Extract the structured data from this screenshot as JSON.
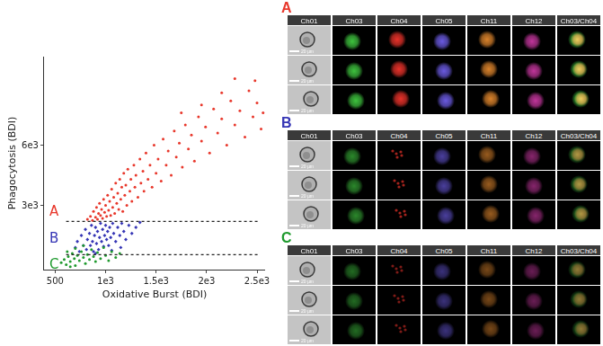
{
  "chart_data": {
    "type": "scatter",
    "xlabel": "Oxidative Burst (BDI)",
    "ylabel": "Phagocytosis (BDI)",
    "xlim": [
      390,
      2580
    ],
    "xticks": [
      500,
      {
        "value": 1000,
        "label": "1e3"
      },
      {
        "value": 1500,
        "label": "1.5e3"
      },
      {
        "value": 2000,
        "label": "2e3"
      },
      {
        "value": 2500,
        "label": "2.5e3"
      }
    ],
    "ylim": [
      -200,
      10400
    ],
    "yticks": [
      {
        "value": 3000,
        "label": "3e3"
      },
      {
        "value": 6000,
        "label": "6e3"
      }
    ],
    "grid": false,
    "gate_boundaries": [
      2200,
      540
    ],
    "series": [
      {
        "name": "A",
        "color": "#e8372b",
        "marker": "circle",
        "x": [
          820,
          850,
          870,
          880,
          900,
          910,
          920,
          930,
          940,
          950,
          960,
          970,
          980,
          990,
          1000,
          1010,
          1020,
          1030,
          1040,
          1050,
          1060,
          1070,
          1080,
          1090,
          1100,
          1110,
          1120,
          1130,
          1140,
          1150,
          1160,
          1170,
          1180,
          1190,
          1200,
          1210,
          1220,
          1240,
          1250,
          1260,
          1280,
          1290,
          1300,
          1320,
          1340,
          1350,
          1370,
          1380,
          1400,
          1420,
          1440,
          1460,
          1480,
          1500,
          1520,
          1550,
          1570,
          1600,
          1620,
          1650,
          1680,
          1700,
          1730,
          1760,
          1790,
          1820,
          1850,
          1880,
          1920,
          1950,
          1990,
          2030,
          2070,
          2110,
          2150,
          2200,
          2240,
          2280,
          2330,
          2380,
          2420,
          2460,
          2500,
          2540,
          2280,
          2480,
          2150,
          1950,
          2560,
          1750
        ],
        "y": [
          2300,
          2450,
          2250,
          2700,
          2400,
          2900,
          2300,
          2600,
          3100,
          2500,
          2800,
          2350,
          3300,
          2650,
          3000,
          2450,
          3500,
          2750,
          3200,
          2500,
          3800,
          2900,
          3400,
          2600,
          4100,
          3100,
          3600,
          2800,
          4300,
          3300,
          3900,
          2700,
          4600,
          3500,
          4000,
          3000,
          4800,
          3700,
          4300,
          3200,
          5000,
          3900,
          4500,
          3400,
          5300,
          4100,
          4700,
          3700,
          5600,
          4300,
          5000,
          3900,
          6000,
          4600,
          5300,
          4200,
          6300,
          5000,
          5700,
          4500,
          6700,
          5400,
          6100,
          4900,
          7000,
          5800,
          6500,
          5200,
          7400,
          6200,
          6900,
          5600,
          7800,
          6600,
          7300,
          6000,
          8200,
          7000,
          7700,
          6400,
          8700,
          7400,
          8100,
          6800,
          9300,
          9200,
          8600,
          8000,
          7600,
          7600
        ]
      },
      {
        "name": "B",
        "color": "#3535b5",
        "marker": "diamond",
        "x": [
          700,
          720,
          740,
          760,
          780,
          800,
          810,
          820,
          840,
          850,
          860,
          870,
          880,
          890,
          900,
          910,
          920,
          930,
          940,
          950,
          960,
          970,
          980,
          990,
          1000,
          1010,
          1020,
          1030,
          1040,
          1050,
          1070,
          1080,
          1100,
          1120,
          1140,
          1160,
          1180,
          1200,
          1230,
          1260,
          1300,
          1340,
          900,
          1060,
          1150
        ],
        "y": [
          900,
          1200,
          700,
          1500,
          1000,
          1800,
          800,
          1300,
          1600,
          1000,
          2000,
          1200,
          700,
          1500,
          1900,
          1100,
          1700,
          800,
          1400,
          2100,
          1200,
          1800,
          950,
          1500,
          2000,
          1300,
          1700,
          1000,
          1900,
          1400,
          2100,
          1600,
          1200,
          1900,
          1500,
          2100,
          1700,
          1300,
          2000,
          1600,
          1900,
          2150,
          600,
          750,
          900
        ]
      },
      {
        "name": "C",
        "color": "#1f9a2e",
        "marker": "circle",
        "x": [
          560,
          590,
          610,
          630,
          650,
          670,
          690,
          700,
          720,
          740,
          760,
          780,
          800,
          820,
          840,
          860,
          880,
          900,
          920,
          950,
          980,
          1000,
          1030,
          1060,
          1100,
          1140,
          780,
          700,
          650,
          620
        ],
        "y": [
          150,
          300,
          50,
          450,
          200,
          600,
          350,
          0,
          500,
          250,
          700,
          400,
          100,
          550,
          300,
          800,
          450,
          200,
          650,
          350,
          900,
          500,
          250,
          700,
          400,
          600,
          1000,
          850,
          -50,
          700
        ]
      }
    ]
  },
  "image_panels": {
    "channels": [
      "Ch01",
      "Ch03",
      "Ch04",
      "Ch05",
      "Ch11",
      "Ch12",
      "Ch03/Ch04"
    ],
    "scale_bar": "20 µm",
    "panels": [
      {
        "label": "A",
        "color": "#e8372b"
      },
      {
        "label": "B",
        "color": "#3535b5"
      },
      {
        "label": "C",
        "color": "#1f9a2e"
      }
    ]
  }
}
